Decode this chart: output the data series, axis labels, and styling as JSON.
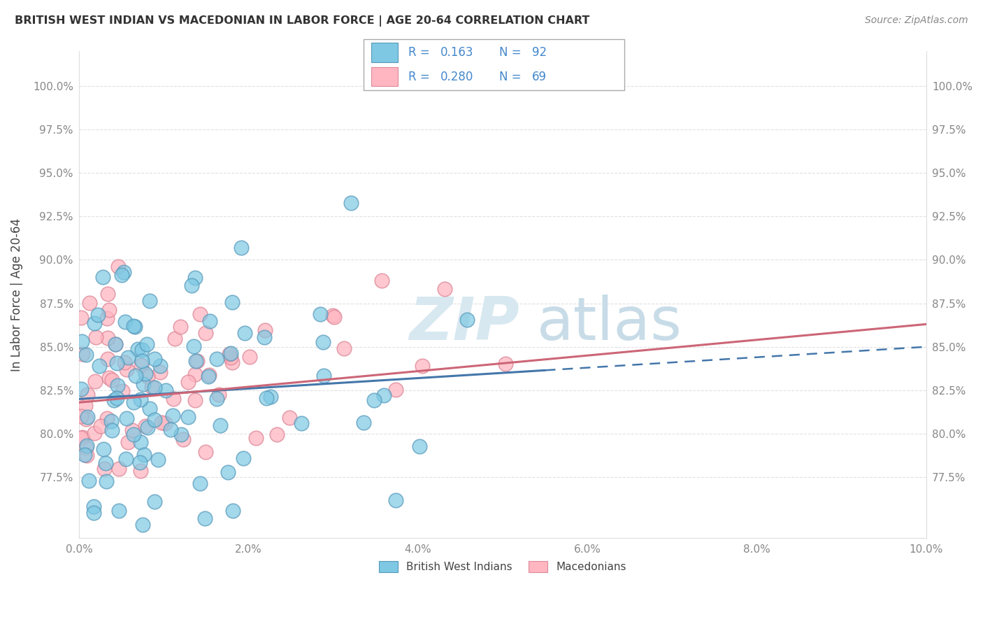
{
  "title": "BRITISH WEST INDIAN VS MACEDONIAN IN LABOR FORCE | AGE 20-64 CORRELATION CHART",
  "source": "Source: ZipAtlas.com",
  "ylabel": "In Labor Force | Age 20-64",
  "xlim": [
    0.0,
    10.0
  ],
  "ylim": [
    74.0,
    102.0
  ],
  "yticks": [
    77.5,
    80.0,
    82.5,
    85.0,
    87.5,
    90.0,
    92.5,
    95.0,
    97.5,
    100.0
  ],
  "xticks": [
    0.0,
    2.0,
    4.0,
    6.0,
    8.0,
    10.0
  ],
  "blue_r": 0.163,
  "blue_n": 92,
  "pink_r": 0.28,
  "pink_n": 69,
  "blue_color": "#7ec8e3",
  "pink_color": "#ffb6c1",
  "blue_edge": "#5599bb",
  "pink_edge": "#dd8899",
  "blue_line": "#4477aa",
  "pink_line": "#cc6677",
  "blue_label": "British West Indians",
  "pink_label": "Macedonians",
  "legend_text_color": "#4488cc",
  "watermark_color": "#d8e8f0",
  "grid_color": "#dddddd",
  "tick_color": "#888888",
  "title_color": "#333333",
  "source_color": "#888888"
}
